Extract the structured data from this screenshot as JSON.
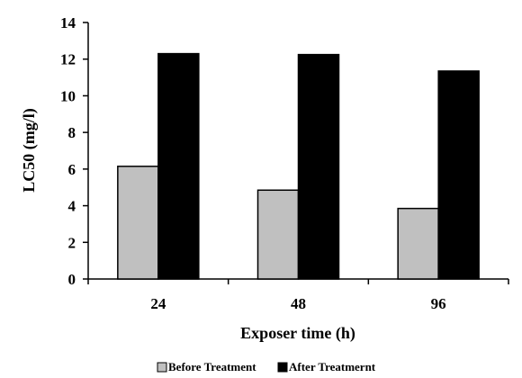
{
  "chart_data": {
    "type": "bar",
    "title": "",
    "xlabel": "Exposer time (h)",
    "ylabel": "LC50 (mg/l)",
    "categories": [
      "24",
      "48",
      "96"
    ],
    "series": [
      {
        "name": "Before Treatment",
        "values": [
          6.15,
          4.85,
          3.85
        ],
        "color": "#c0c0c0"
      },
      {
        "name": "After Treatmernt",
        "values": [
          12.3,
          12.25,
          11.35
        ],
        "color": "#000000"
      }
    ],
    "ylim": [
      0,
      14
    ],
    "yticks": [
      "0",
      "2",
      "4",
      "6",
      "8",
      "10",
      "12",
      "14"
    ],
    "grid": false,
    "legend_position": "bottom-center"
  }
}
